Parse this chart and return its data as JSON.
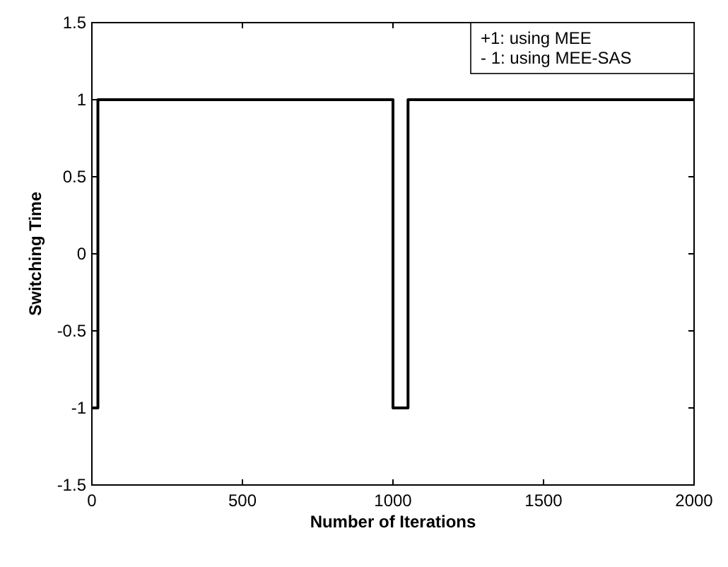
{
  "chart_data": {
    "type": "step",
    "xlabel": "Number of Iterations",
    "ylabel": "Switching Time",
    "x": [
      0,
      20,
      1000,
      1050,
      2000
    ],
    "values": [
      -1,
      1,
      -1,
      1,
      1
    ],
    "color": "#000000",
    "xlim": [
      0,
      2000
    ],
    "xticks": [
      0,
      500,
      1000,
      1500,
      2000
    ],
    "ylim": [
      -1.5,
      1.5
    ],
    "yticks": [
      -1.5,
      -1,
      -0.5,
      0,
      0.5,
      1,
      1.5
    ],
    "grid": false,
    "annotations": [
      "+1: using MEE",
      "- 1: using MEE-SAS"
    ]
  }
}
